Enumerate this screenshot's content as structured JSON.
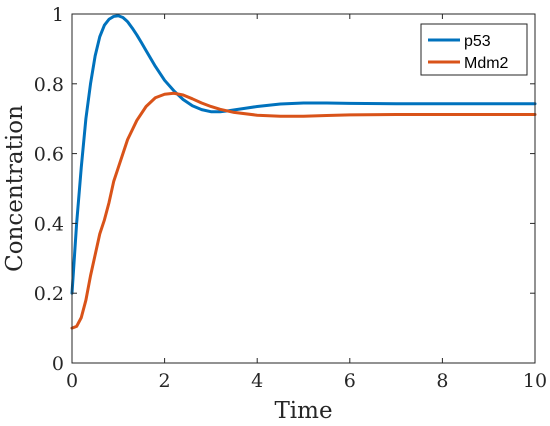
{
  "chart_data": {
    "type": "line",
    "title": "",
    "xlabel": "Time",
    "ylabel": "Concentration",
    "xlim": [
      0,
      10
    ],
    "ylim": [
      0,
      1
    ],
    "xticks": [
      0,
      2,
      4,
      6,
      8,
      10
    ],
    "xtick_labels": [
      "0",
      "2",
      "4",
      "6",
      "8",
      "10"
    ],
    "yticks": [
      0,
      0.2,
      0.4,
      0.6,
      0.8,
      1
    ],
    "ytick_labels": [
      "0",
      "0.2",
      "0.4",
      "0.6",
      "0.8",
      "1"
    ],
    "grid": false,
    "legend_position": "top-right",
    "series": [
      {
        "name": "p53",
        "color": "#0072BD",
        "x": [
          0,
          0.1,
          0.2,
          0.3,
          0.4,
          0.5,
          0.6,
          0.7,
          0.8,
          0.9,
          1.0,
          1.1,
          1.2,
          1.3,
          1.4,
          1.5,
          1.6,
          1.8,
          2.0,
          2.2,
          2.4,
          2.6,
          2.8,
          3.0,
          3.2,
          3.4,
          3.6,
          3.8,
          4.0,
          4.5,
          5.0,
          5.5,
          6.0,
          7.0,
          8.0,
          9.0,
          10.0
        ],
        "y": [
          0.2,
          0.4,
          0.56,
          0.7,
          0.8,
          0.88,
          0.935,
          0.968,
          0.985,
          0.993,
          0.995,
          0.99,
          0.978,
          0.96,
          0.94,
          0.918,
          0.895,
          0.85,
          0.81,
          0.78,
          0.755,
          0.737,
          0.726,
          0.72,
          0.72,
          0.723,
          0.727,
          0.731,
          0.735,
          0.742,
          0.745,
          0.745,
          0.744,
          0.743,
          0.743,
          0.743,
          0.743
        ]
      },
      {
        "name": "Mdm2",
        "color": "#D95319",
        "x": [
          0,
          0.1,
          0.2,
          0.3,
          0.4,
          0.5,
          0.6,
          0.7,
          0.8,
          0.9,
          1.0,
          1.2,
          1.4,
          1.6,
          1.8,
          2.0,
          2.2,
          2.4,
          2.6,
          2.8,
          3.0,
          3.2,
          3.5,
          4.0,
          4.5,
          5.0,
          5.5,
          6.0,
          7.0,
          8.0,
          9.0,
          10.0
        ],
        "y": [
          0.1,
          0.105,
          0.13,
          0.18,
          0.25,
          0.31,
          0.37,
          0.41,
          0.46,
          0.52,
          0.56,
          0.64,
          0.695,
          0.735,
          0.76,
          0.77,
          0.773,
          0.768,
          0.757,
          0.745,
          0.735,
          0.727,
          0.718,
          0.71,
          0.707,
          0.707,
          0.709,
          0.711,
          0.712,
          0.712,
          0.712,
          0.712
        ]
      }
    ]
  }
}
